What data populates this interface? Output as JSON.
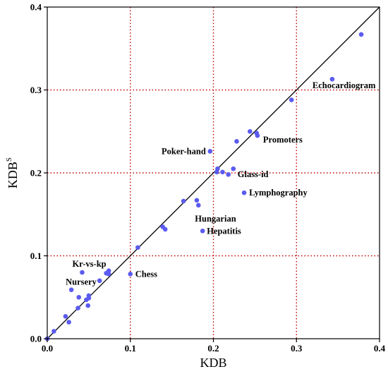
{
  "chart_data": {
    "type": "scatter",
    "title": "",
    "xlabel": "KDB",
    "ylabel": "KDB",
    "ylabel_superscript": "S",
    "xlim": [
      0,
      0.4
    ],
    "ylim": [
      0,
      0.4
    ],
    "xticks": [
      "0.0",
      "0.1",
      "0.2",
      "0.3",
      "0.4"
    ],
    "yticks": [
      "0.0",
      "0.1",
      "0.2",
      "0.3",
      "0.4"
    ],
    "grid": true,
    "grid_style": "dotted red at major ticks",
    "diagonal_reference": true,
    "point_color": "#5b5bef",
    "grid_color": "#c00000",
    "points": [
      {
        "x": 0.0,
        "y": 0.0
      },
      {
        "x": 0.008,
        "y": 0.009
      },
      {
        "x": 0.022,
        "y": 0.027
      },
      {
        "x": 0.026,
        "y": 0.02
      },
      {
        "x": 0.029,
        "y": 0.059
      },
      {
        "x": 0.037,
        "y": 0.037
      },
      {
        "x": 0.038,
        "y": 0.05
      },
      {
        "x": 0.042,
        "y": 0.08
      },
      {
        "x": 0.047,
        "y": 0.047
      },
      {
        "x": 0.049,
        "y": 0.04
      },
      {
        "x": 0.05,
        "y": 0.052
      },
      {
        "x": 0.05,
        "y": 0.049
      },
      {
        "x": 0.063,
        "y": 0.07
      },
      {
        "x": 0.071,
        "y": 0.079
      },
      {
        "x": 0.074,
        "y": 0.078
      },
      {
        "x": 0.074,
        "y": 0.082
      },
      {
        "x": 0.1,
        "y": 0.078
      },
      {
        "x": 0.109,
        "y": 0.11
      },
      {
        "x": 0.139,
        "y": 0.135
      },
      {
        "x": 0.142,
        "y": 0.132
      },
      {
        "x": 0.164,
        "y": 0.166
      },
      {
        "x": 0.18,
        "y": 0.167
      },
      {
        "x": 0.182,
        "y": 0.161
      },
      {
        "x": 0.187,
        "y": 0.13
      },
      {
        "x": 0.196,
        "y": 0.226
      },
      {
        "x": 0.204,
        "y": 0.201
      },
      {
        "x": 0.205,
        "y": 0.205
      },
      {
        "x": 0.211,
        "y": 0.201
      },
      {
        "x": 0.218,
        "y": 0.198
      },
      {
        "x": 0.224,
        "y": 0.205
      },
      {
        "x": 0.228,
        "y": 0.238
      },
      {
        "x": 0.237,
        "y": 0.176
      },
      {
        "x": 0.244,
        "y": 0.25
      },
      {
        "x": 0.252,
        "y": 0.248
      },
      {
        "x": 0.253,
        "y": 0.245
      },
      {
        "x": 0.294,
        "y": 0.288
      },
      {
        "x": 0.343,
        "y": 0.313
      },
      {
        "x": 0.378,
        "y": 0.367
      }
    ],
    "annotations": [
      {
        "text": "Echocardiogram",
        "x": 0.343,
        "y": 0.313
      },
      {
        "text": "Promoters",
        "x": 0.253,
        "y": 0.245
      },
      {
        "text": "Poker-hand",
        "x": 0.196,
        "y": 0.226
      },
      {
        "text": "Glass-id",
        "x": 0.224,
        "y": 0.205
      },
      {
        "text": "Lymphography",
        "x": 0.237,
        "y": 0.176
      },
      {
        "text": "Hungarian",
        "x": 0.182,
        "y": 0.161
      },
      {
        "text": "Hepatitis",
        "x": 0.187,
        "y": 0.13
      },
      {
        "text": "Kr-vs-kp",
        "x": 0.042,
        "y": 0.08
      },
      {
        "text": "Chess",
        "x": 0.1,
        "y": 0.078
      },
      {
        "text": "Nursery",
        "x": 0.029,
        "y": 0.059
      }
    ]
  }
}
